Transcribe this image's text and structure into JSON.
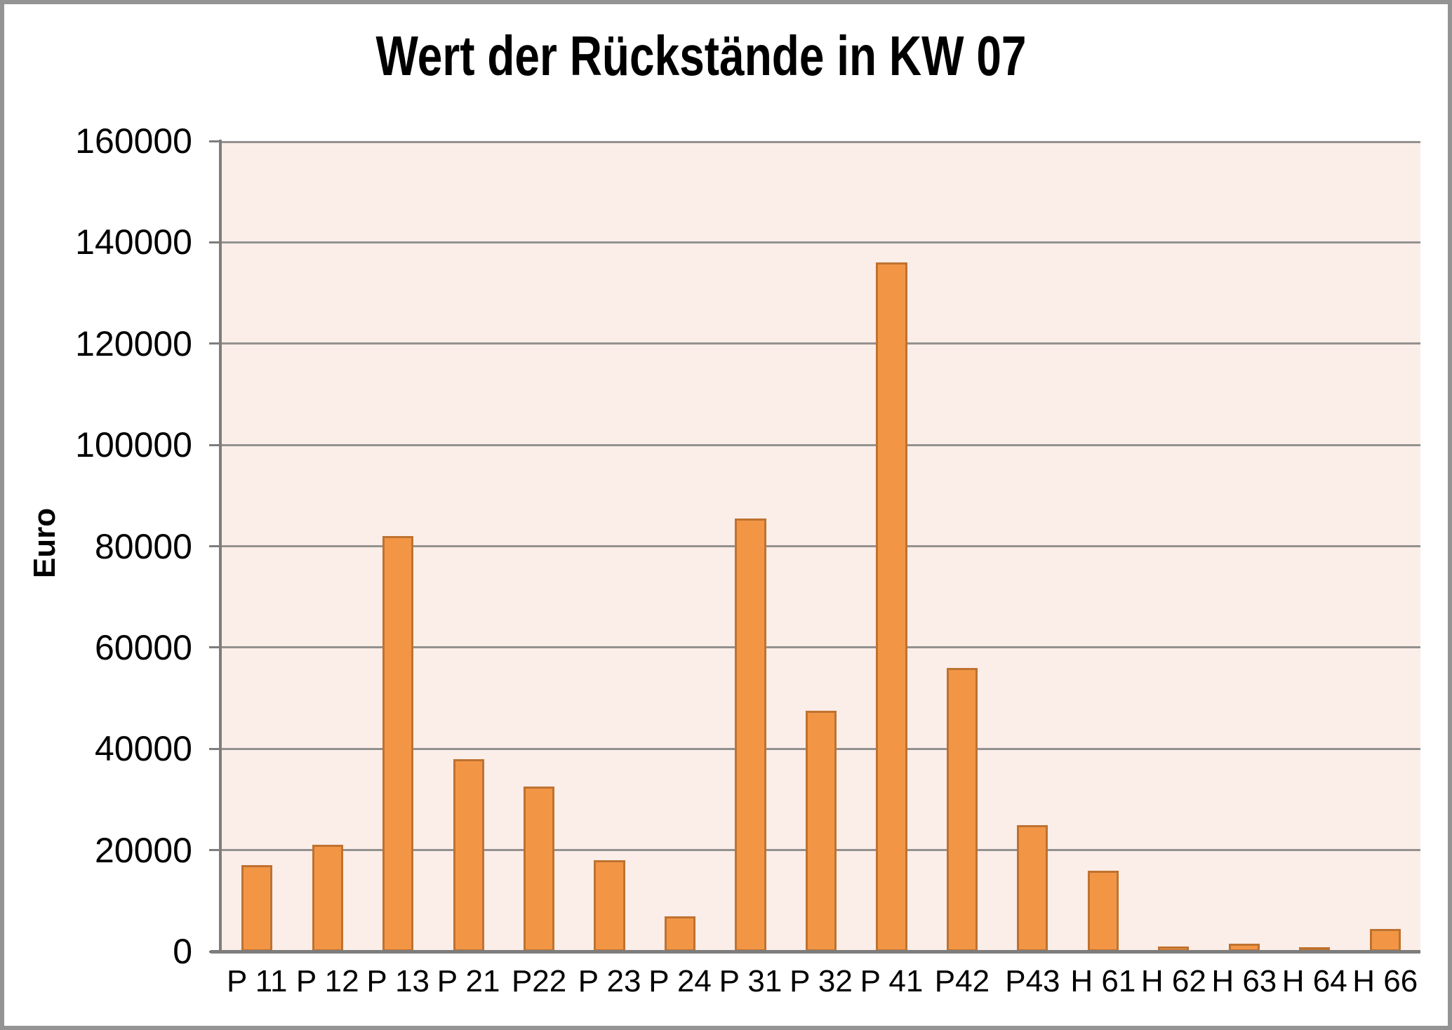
{
  "chart_data": {
    "type": "bar",
    "title": "Wert der Rückstände in KW 07",
    "xlabel": "",
    "ylabel": "Euro",
    "categories": [
      "P 11",
      "P 12",
      "P 13",
      "P 21",
      "P22",
      "P 23",
      "P 24",
      "P 31",
      "P 32",
      "P 41",
      "P42",
      "P43",
      "H 61",
      "H 62",
      "H 63",
      "H 64",
      "H 66"
    ],
    "values": [
      17000,
      21000,
      82000,
      38000,
      32500,
      18000,
      7000,
      85500,
      47500,
      136000,
      56000,
      25000,
      16000,
      1000,
      1500,
      500,
      4500
    ],
    "ylim": [
      0,
      160000
    ],
    "yticks": [
      0,
      20000,
      40000,
      60000,
      80000,
      100000,
      120000,
      140000,
      160000
    ],
    "grid": true,
    "legend": false,
    "colors": {
      "bar_fill": "#F29646",
      "bar_border": "#BE7230",
      "plot_background": "#FBEDE8",
      "gridline": "#939190",
      "axis_line": "#7D7D7D",
      "frame_border": "#949494",
      "page_background": "#FFFFFF",
      "text": "#000000"
    }
  }
}
